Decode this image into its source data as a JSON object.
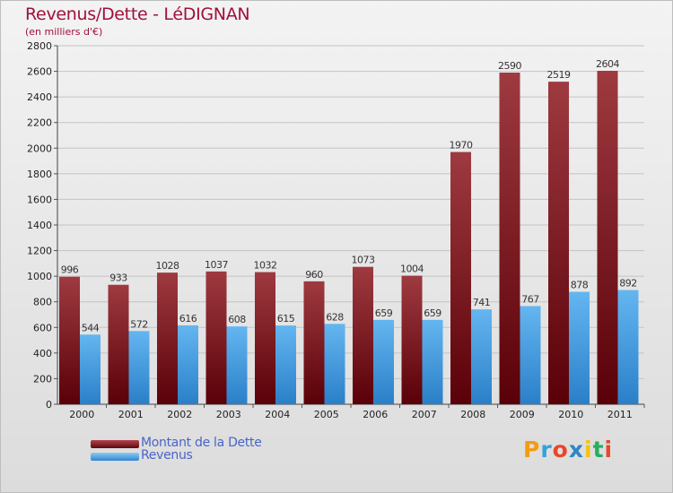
{
  "header": {
    "title": "Revenus/Dette - LéDIGNAN",
    "subtitle": "(en milliers d'€)"
  },
  "colors": {
    "dette": "#7a1a22",
    "revenus": "#4aa0e2",
    "title": "#a0103a"
  },
  "legend": {
    "dette_label": "Montant de la Dette",
    "revenus_label": "Revenus"
  },
  "logo": {
    "letters": [
      "P",
      "r",
      "o",
      "x",
      "i",
      "t",
      "i"
    ],
    "colors": [
      "#f39c12",
      "#3aa0d8",
      "#e8472b",
      "#2e86c1",
      "#f1c40f",
      "#27ae60",
      "#e8472b"
    ]
  },
  "chart_data": {
    "type": "bar",
    "categories": [
      "2000",
      "2001",
      "2002",
      "2003",
      "2004",
      "2005",
      "2006",
      "2007",
      "2008",
      "2009",
      "2010",
      "2011"
    ],
    "series": [
      {
        "name": "Montant de la Dette",
        "values": [
          996,
          933,
          1028,
          1037,
          1032,
          960,
          1073,
          1004,
          1970,
          2590,
          2519,
          2604
        ]
      },
      {
        "name": "Revenus",
        "values": [
          544,
          572,
          616,
          608,
          615,
          628,
          659,
          659,
          741,
          767,
          878,
          892
        ]
      }
    ],
    "title": "Revenus/Dette - LéDIGNAN",
    "subtitle": "(en milliers d'€)",
    "xlabel": "",
    "ylabel": "",
    "ylim": [
      0,
      2800
    ],
    "yticks": [
      0,
      200,
      400,
      600,
      800,
      1000,
      1200,
      1400,
      1600,
      1800,
      2000,
      2200,
      2400,
      2600,
      2800
    ],
    "grid": true,
    "legend_position": "bottom-left"
  }
}
